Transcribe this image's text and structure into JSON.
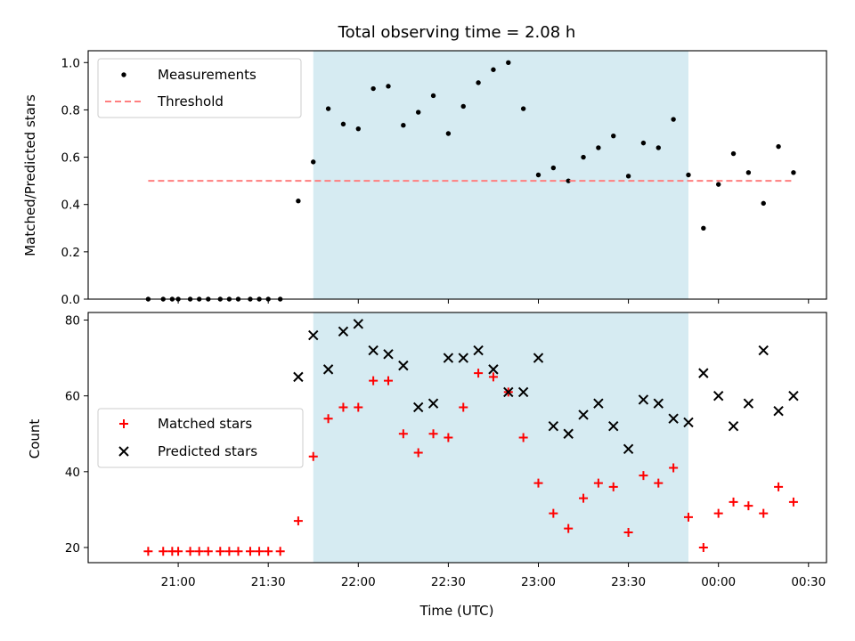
{
  "chart_data": [
    {
      "type": "scatter",
      "title": "Total observing time = 2.08 h",
      "ylabel": "Matched/Predicted stars",
      "xlabel": "",
      "ylim": [
        0,
        1.05
      ],
      "yticks": [
        "0.0",
        "0.2",
        "0.4",
        "0.6",
        "0.8",
        "1.0"
      ],
      "legend": {
        "position": "top-left",
        "entries": [
          "Measurements",
          "Threshold"
        ]
      },
      "observing_window": {
        "start": "21:45",
        "end": "23:50",
        "color": "#add8e6"
      },
      "series": [
        {
          "name": "Measurements",
          "marker": "dot",
          "color": "#000000",
          "x": [
            "20:50",
            "20:55",
            "20:58",
            "21:00",
            "21:04",
            "21:07",
            "21:10",
            "21:14",
            "21:17",
            "21:20",
            "21:24",
            "21:27",
            "21:30",
            "21:34",
            "21:40",
            "21:45",
            "21:50",
            "21:55",
            "22:00",
            "22:05",
            "22:10",
            "22:15",
            "22:20",
            "22:25",
            "22:30",
            "22:35",
            "22:40",
            "22:45",
            "22:50",
            "22:55",
            "23:00",
            "23:05",
            "23:10",
            "23:15",
            "23:20",
            "23:25",
            "23:30",
            "23:35",
            "23:40",
            "23:45",
            "23:50",
            "23:55",
            "24:00",
            "24:05",
            "24:10",
            "24:15",
            "24:20",
            "24:25"
          ],
          "y": [
            0,
            0,
            0,
            0,
            0,
            0,
            0,
            0,
            0,
            0,
            0,
            0,
            0,
            0,
            0.415,
            0.58,
            0.805,
            0.74,
            0.72,
            0.89,
            0.9,
            0.735,
            0.79,
            0.86,
            0.7,
            0.815,
            0.915,
            0.97,
            1.0,
            0.805,
            0.525,
            0.555,
            0.5,
            0.6,
            0.64,
            0.69,
            0.52,
            0.66,
            0.64,
            0.76,
            0.525,
            0.3,
            0.485,
            0.615,
            0.535,
            0.405,
            0.645,
            0.535
          ]
        },
        {
          "name": "Threshold",
          "marker": "dashed-line",
          "color": "#ff7f7f",
          "x": [
            "20:50",
            "24:25"
          ],
          "y": [
            0.5,
            0.5
          ]
        }
      ]
    },
    {
      "type": "scatter",
      "title": "",
      "ylabel": "Count",
      "xlabel": "Time (UTC)",
      "ylim": [
        16,
        82
      ],
      "yticks": [
        "20",
        "40",
        "60",
        "80"
      ],
      "xticks": [
        "21:00",
        "21:30",
        "22:00",
        "22:30",
        "23:00",
        "23:30",
        "00:00",
        "00:30"
      ],
      "legend": {
        "position": "center-left",
        "entries": [
          "Matched stars",
          "Predicted stars"
        ]
      },
      "observing_window": {
        "start": "21:45",
        "end": "23:50",
        "color": "#add8e6"
      },
      "series": [
        {
          "name": "Matched stars",
          "marker": "plus",
          "color": "#ff0000",
          "x": [
            "20:50",
            "20:55",
            "20:58",
            "21:00",
            "21:04",
            "21:07",
            "21:10",
            "21:14",
            "21:17",
            "21:20",
            "21:24",
            "21:27",
            "21:30",
            "21:34",
            "21:40",
            "21:45",
            "21:50",
            "21:55",
            "22:00",
            "22:05",
            "22:10",
            "22:15",
            "22:20",
            "22:25",
            "22:30",
            "22:35",
            "22:40",
            "22:45",
            "22:50",
            "22:55",
            "23:00",
            "23:05",
            "23:10",
            "23:15",
            "23:20",
            "23:25",
            "23:30",
            "23:35",
            "23:40",
            "23:45",
            "23:50",
            "23:55",
            "24:00",
            "24:05",
            "24:10",
            "24:15",
            "24:20",
            "24:25"
          ],
          "y": [
            19,
            19,
            19,
            19,
            19,
            19,
            19,
            19,
            19,
            19,
            19,
            19,
            19,
            19,
            27,
            44,
            54,
            57,
            57,
            64,
            64,
            50,
            45,
            50,
            49,
            57,
            66,
            65,
            61,
            49,
            37,
            29,
            25,
            33,
            37,
            36,
            24,
            39,
            37,
            41,
            28,
            20,
            29,
            32,
            31,
            29,
            36,
            32
          ]
        },
        {
          "name": "Predicted stars",
          "marker": "x",
          "color": "#000000",
          "x": [
            "21:40",
            "21:45",
            "21:50",
            "21:55",
            "22:00",
            "22:05",
            "22:10",
            "22:15",
            "22:20",
            "22:25",
            "22:30",
            "22:35",
            "22:40",
            "22:45",
            "22:50",
            "22:55",
            "23:00",
            "23:05",
            "23:10",
            "23:15",
            "23:20",
            "23:25",
            "23:30",
            "23:35",
            "23:40",
            "23:45",
            "23:50",
            "23:55",
            "24:00",
            "24:05",
            "24:10",
            "24:15",
            "24:20",
            "24:25"
          ],
          "y": [
            65,
            76,
            67,
            77,
            79,
            72,
            71,
            68,
            57,
            58,
            70,
            70,
            72,
            67,
            61,
            61,
            70,
            52,
            50,
            55,
            58,
            52,
            46,
            59,
            58,
            54,
            53,
            66,
            60,
            52,
            58,
            72,
            56,
            60
          ]
        }
      ]
    }
  ]
}
